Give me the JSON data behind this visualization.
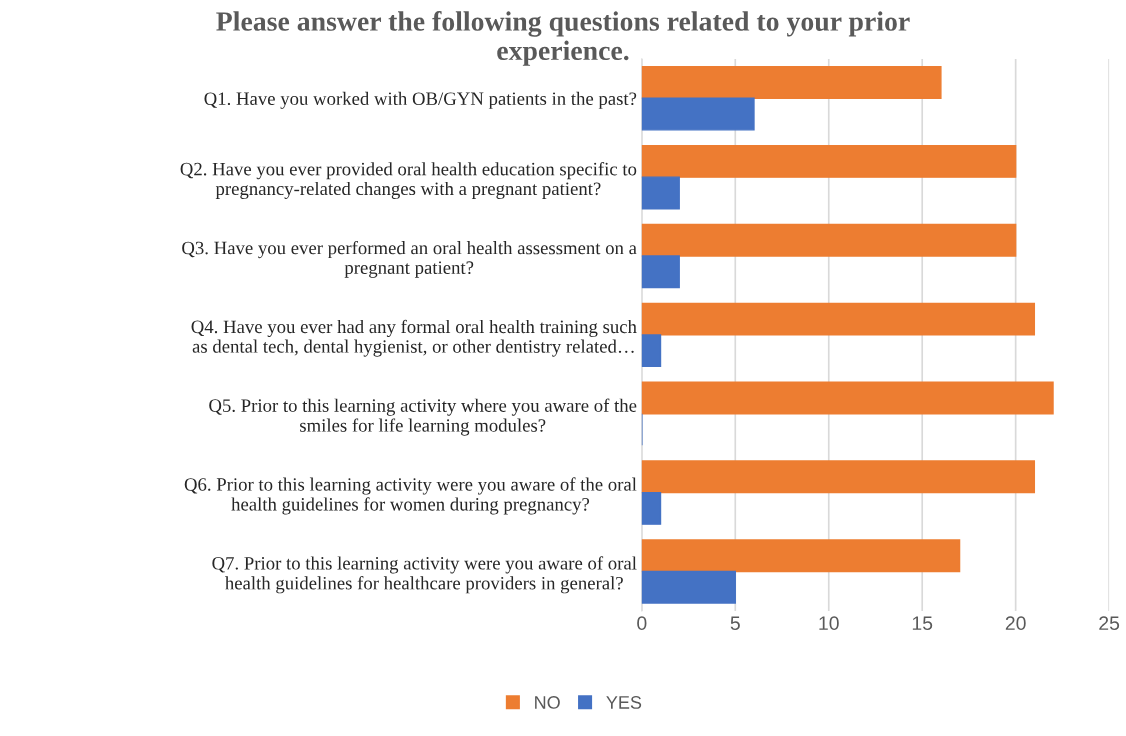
{
  "chart_data": {
    "type": "bar",
    "orientation": "horizontal",
    "title": "Please answer the following questions related to your prior\nexperience.",
    "categories": [
      "Q1. Have you worked with OB/GYN patients in the past?",
      "Q2. Have you ever provided oral health education specific to\npregnancy-related changes with a pregnant patient?",
      "Q3. Have you ever performed an oral health assessment on a\npregnant patient?",
      "Q4. Have you ever had any formal oral health training such\nas dental tech, dental hygienist, or other dentistry related…",
      "Q5. Prior to this learning activity where you aware of the\nsmiles for life learning modules?",
      "Q6. Prior to this learning activity were you aware of the oral\nhealth guidelines for women during pregnancy?",
      "Q7. Prior to this learning activity were you aware of oral\nhealth guidelines for healthcare providers in general?"
    ],
    "series": [
      {
        "name": "NO",
        "color": "#ed7d31",
        "values": [
          16,
          20,
          20,
          21,
          22,
          21,
          17
        ]
      },
      {
        "name": "YES",
        "color": "#4472c4",
        "values": [
          6,
          2,
          2,
          1,
          0,
          1,
          5
        ]
      }
    ],
    "xlim": [
      0,
      25
    ],
    "xticks": [
      0,
      5,
      10,
      15,
      20,
      25
    ],
    "grid": "x",
    "legend": "bottom"
  }
}
